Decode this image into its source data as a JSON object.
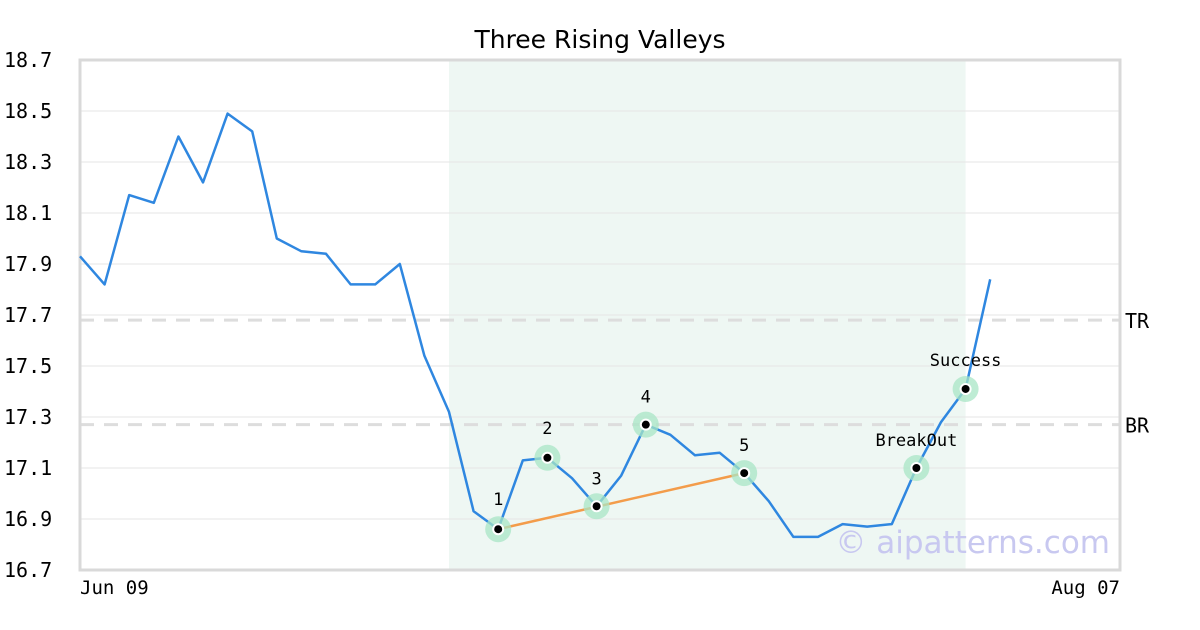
{
  "chart_data": {
    "type": "line",
    "title": "Three Rising Valleys",
    "xlabel": "",
    "ylabel": "",
    "ylim": [
      16.7,
      18.7
    ],
    "yticks": [
      "18.7",
      "18.5",
      "18.3",
      "18.1",
      "17.9",
      "17.7",
      "17.5",
      "17.3",
      "17.1",
      "16.9",
      "16.7"
    ],
    "x_tick_labels": [
      "Jun 09",
      "Aug 07"
    ],
    "grid": "horizontal",
    "series": [
      {
        "values": [
          17.93,
          17.82,
          18.17,
          18.14,
          18.4,
          18.22,
          18.49,
          18.42,
          18.0,
          17.95,
          17.94,
          17.82,
          17.82,
          17.9,
          17.54,
          17.32,
          16.93,
          16.86,
          17.13,
          17.14,
          17.06,
          16.95,
          17.07,
          17.27,
          17.23,
          17.15,
          17.16,
          17.08,
          16.97,
          16.83,
          16.83,
          16.88,
          16.87,
          16.88,
          17.1,
          17.28,
          17.41,
          17.84
        ],
        "color": "#2f87e0"
      }
    ],
    "reference_lines": [
      {
        "label": "TR",
        "y": 17.68
      },
      {
        "label": "BR",
        "y": 17.27
      }
    ],
    "shaded_region": {
      "x_start": 15,
      "x_end": 36,
      "color": "#eef7f3"
    },
    "trendline": {
      "from_index": 17,
      "to_index": 27,
      "color": "#f39c4a"
    },
    "points": [
      {
        "label": "1",
        "index": 17
      },
      {
        "label": "2",
        "index": 19
      },
      {
        "label": "3",
        "index": 21
      },
      {
        "label": "4",
        "index": 23
      },
      {
        "label": "5",
        "index": 27
      },
      {
        "label": "BreakOut",
        "index": 34
      },
      {
        "label": "Success",
        "index": 36
      }
    ],
    "watermark": "© aipatterns.com"
  }
}
